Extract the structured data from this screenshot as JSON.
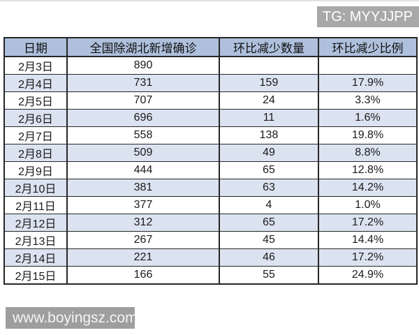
{
  "page": {
    "tg_badge": "TG: MYYJJPP",
    "watermark": "www.boyingsz.com"
  },
  "colors": {
    "header_bg": "#aec0dc",
    "row_alt_bg": "#dbe3f1",
    "row_bg": "#ffffff",
    "border": "#262626",
    "text": "#1a1a1a",
    "badge_bg": "#a8a8a8",
    "badge_text": "#ffffff",
    "watermark_bg": "#9e9e9e",
    "page_bg": "#ffffff"
  },
  "chart_data": {
    "type": "table",
    "title": "",
    "columns": [
      "日期",
      "全国除湖北新增确诊",
      "环比减少数量",
      "环比减少比例"
    ],
    "rows": [
      [
        "2月3日",
        "890",
        "",
        ""
      ],
      [
        "2月4日",
        "731",
        "159",
        "17.9%"
      ],
      [
        "2月5日",
        "707",
        "24",
        "3.3%"
      ],
      [
        "2月6日",
        "696",
        "11",
        "1.6%"
      ],
      [
        "2月7日",
        "558",
        "138",
        "19.8%"
      ],
      [
        "2月8日",
        "509",
        "49",
        "8.8%"
      ],
      [
        "2月9日",
        "444",
        "65",
        "12.8%"
      ],
      [
        "2月10日",
        "381",
        "63",
        "14.2%"
      ],
      [
        "2月11日",
        "377",
        "4",
        "1.0%"
      ],
      [
        "2月12日",
        "312",
        "65",
        "17.2%"
      ],
      [
        "2月13日",
        "267",
        "45",
        "14.4%"
      ],
      [
        "2月14日",
        "221",
        "46",
        "17.2%"
      ],
      [
        "2月15日",
        "166",
        "55",
        "24.9%"
      ]
    ]
  }
}
